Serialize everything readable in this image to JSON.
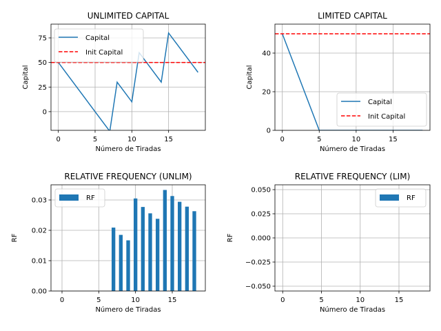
{
  "colors": {
    "capital": "#1f77b4",
    "init": "#ff0000",
    "grid": "#b0b0b0"
  },
  "chart_data": [
    {
      "type": "line",
      "title": "UNLIMITED CAPITAL",
      "xlabel": "Número de Tiradas",
      "ylabel": "Capital",
      "xlim": [
        -1,
        20
      ],
      "ylim": [
        -19,
        89
      ],
      "xticks": [
        0,
        5,
        10,
        15
      ],
      "yticks": [
        0,
        25,
        50,
        75
      ],
      "grid": true,
      "legend_position": "top-left",
      "series": [
        {
          "name": "Capital",
          "x": [
            0,
            7,
            8,
            10,
            11,
            14,
            15,
            18,
            19
          ],
          "values": [
            50,
            -20,
            30,
            10,
            60,
            30,
            80,
            50,
            40
          ]
        },
        {
          "name": "Init Capital",
          "hline": 50,
          "style": "dashed"
        }
      ]
    },
    {
      "type": "line",
      "title": "LIMITED CAPITAL",
      "xlabel": "Número de Tiradas",
      "ylabel": "Capital",
      "xlim": [
        -1,
        20
      ],
      "ylim": [
        0,
        55
      ],
      "xticks": [
        0,
        5,
        10,
        15
      ],
      "yticks": [
        0,
        20,
        40
      ],
      "grid": true,
      "legend_position": "lower-right",
      "series": [
        {
          "name": "Capital",
          "x": [
            0,
            5,
            19
          ],
          "values": [
            50,
            0,
            0
          ]
        },
        {
          "name": "Init Capital",
          "hline": 50,
          "style": "dashed"
        }
      ]
    },
    {
      "type": "bar",
      "title": "RELATIVE FREQUENCY (UNLIM)",
      "xlabel": "Número de Tiradas",
      "ylabel": "RF",
      "xlim": [
        -1.5,
        19.5
      ],
      "ylim": [
        0,
        0.035
      ],
      "xticks": [
        0,
        5,
        10,
        15
      ],
      "yticks": [
        0,
        0.01,
        0.02,
        0.03
      ],
      "ytick_labels": [
        "0.00",
        "0.01",
        "0.02",
        "0.03"
      ],
      "grid": true,
      "legend_position": "top-left",
      "series": [
        {
          "name": "RF",
          "x": [
            7,
            8,
            9,
            10,
            11,
            12,
            13,
            14,
            15,
            16,
            17,
            18
          ],
          "values": [
            0.0209,
            0.0185,
            0.0167,
            0.0305,
            0.0277,
            0.0256,
            0.0238,
            0.0333,
            0.0313,
            0.0294,
            0.0278,
            0.0263
          ]
        }
      ]
    },
    {
      "type": "bar",
      "title": "RELATIVE FREQUENCY (LIM)",
      "xlabel": "Número de Tiradas",
      "ylabel": "RF",
      "xlim": [
        -1,
        19
      ],
      "ylim": [
        -0.055,
        0.055
      ],
      "xticks": [
        0,
        5,
        10,
        15
      ],
      "yticks": [
        -0.05,
        -0.025,
        0,
        0.025,
        0.05
      ],
      "ytick_labels": [
        "−0.050",
        "−0.025",
        "0.000",
        "0.025",
        "0.050"
      ],
      "grid": true,
      "legend_position": "top-right",
      "series": [
        {
          "name": "RF",
          "x": [],
          "values": []
        }
      ]
    }
  ]
}
